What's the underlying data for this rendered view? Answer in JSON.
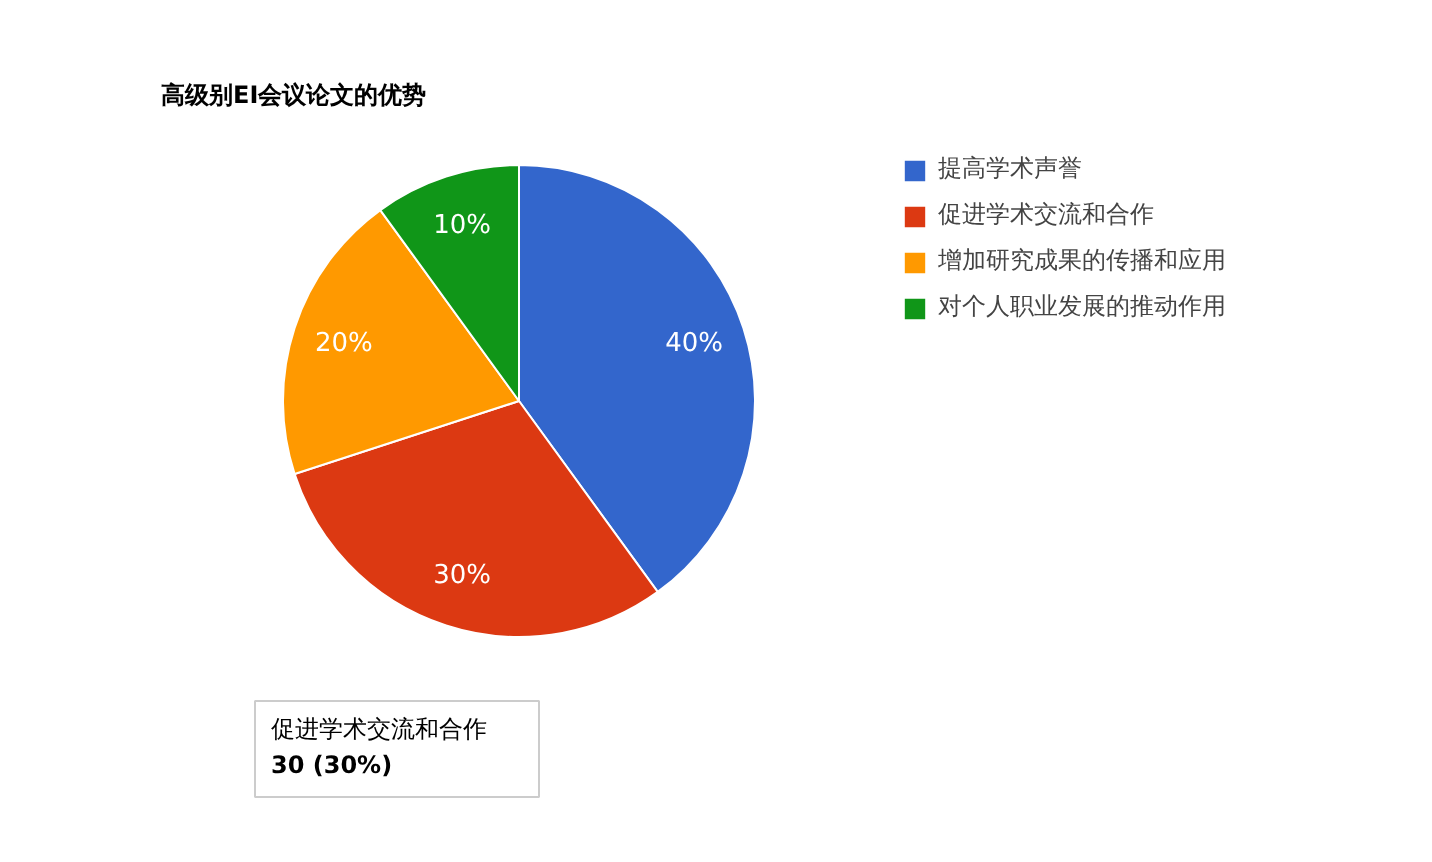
{
  "chart_data": {
    "type": "pie",
    "title": "高级别EI会议论文的优势",
    "categories": [
      "提高学术声誉",
      "促进学术交流和合作",
      "增加研究成果的传播和应用",
      "对个人职业发展的推动作用"
    ],
    "values": [
      40,
      30,
      20,
      10
    ],
    "colors": [
      "#3366cc",
      "#dc3912",
      "#ff9900",
      "#109618"
    ],
    "value_labels": [
      "40%",
      "30%",
      "20%",
      "10%"
    ],
    "legend": "right",
    "annotations": [
      "促进学术交流和合作",
      "30 (30%)"
    ]
  }
}
